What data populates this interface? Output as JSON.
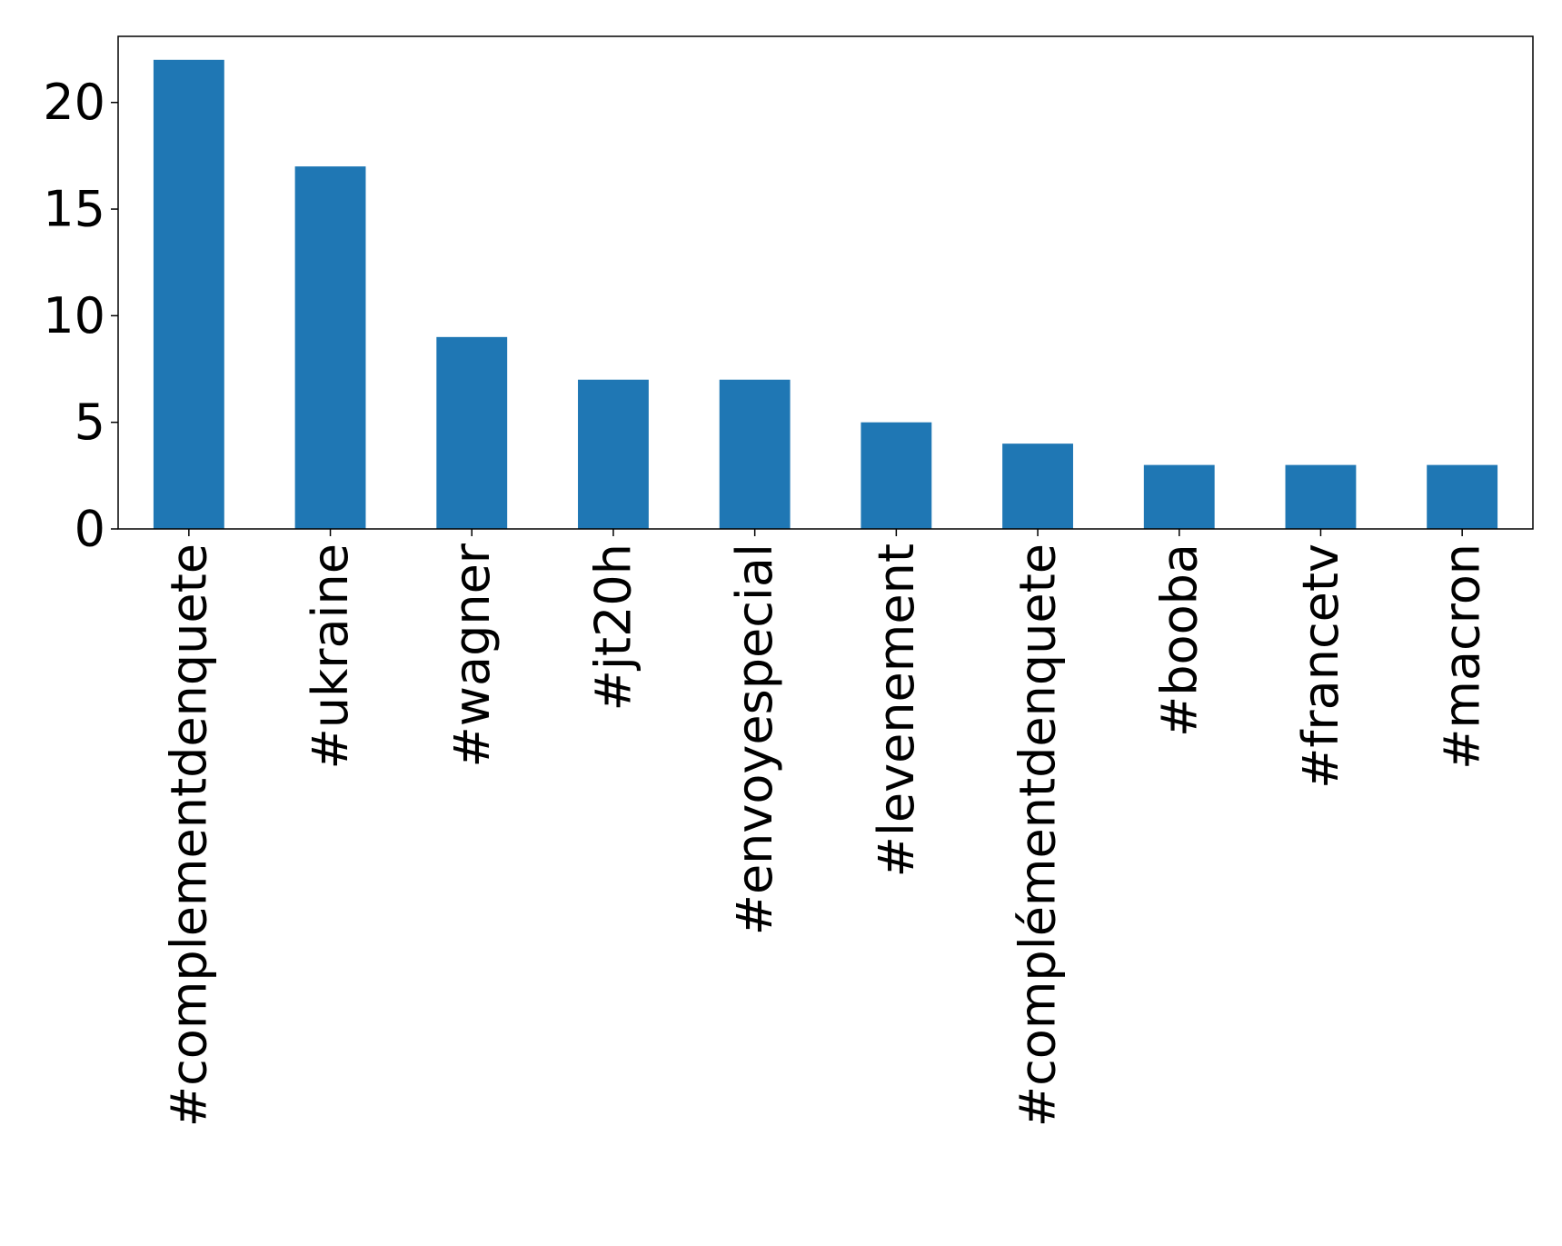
{
  "chart_data": {
    "type": "bar",
    "title": "",
    "xlabel": "",
    "ylabel": "",
    "categories": [
      "#complementdenquete",
      "#ukraine",
      "#wagner",
      "#jt20h",
      "#envoyespecial",
      "#levenement",
      "#complémentdenquete",
      "#booba",
      "#francetv",
      "#macron"
    ],
    "values": [
      22,
      17,
      9,
      7,
      7,
      5,
      4,
      3,
      3,
      3
    ],
    "ylim": [
      0,
      23.1
    ],
    "yticks": [
      0,
      5,
      10,
      15,
      20
    ],
    "grid": false,
    "legend": "none",
    "bar_color": "#1f77b4",
    "tick_label_rotation": "vertical"
  }
}
